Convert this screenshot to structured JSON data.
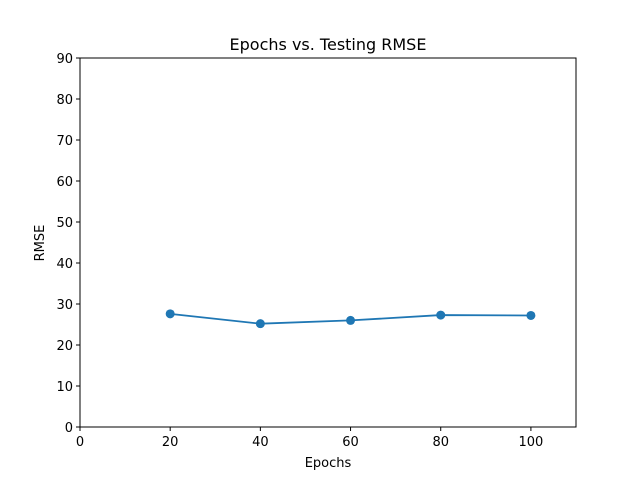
{
  "chart_data": {
    "type": "line",
    "title": "Epochs vs. Testing RMSE",
    "xlabel": "Epochs",
    "ylabel": "RMSE",
    "xlim": [
      0,
      110
    ],
    "ylim": [
      0,
      90
    ],
    "xticks": [
      0,
      20,
      40,
      60,
      80,
      100
    ],
    "yticks": [
      0,
      10,
      20,
      30,
      40,
      50,
      60,
      70,
      80,
      90
    ],
    "grid": false,
    "series": [
      {
        "x": [
          20,
          40,
          60,
          80,
          100
        ],
        "y": [
          27.6,
          25.2,
          26.0,
          27.3,
          27.2
        ],
        "color": "#1f77b4",
        "marker": "circle"
      }
    ]
  }
}
